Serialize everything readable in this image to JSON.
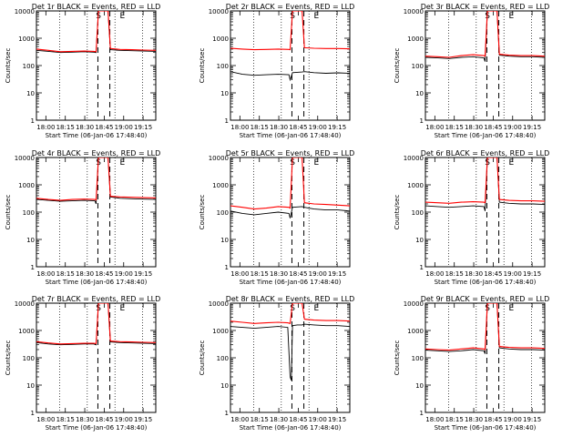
{
  "common": {
    "ylabel": "Counts/sec",
    "xlabel": "Start Time (06-Jan-06 17:48:40)",
    "yticks": [
      "1",
      "10",
      "100",
      "1000",
      "10000"
    ],
    "marker_s": "S",
    "marker_e": "E",
    "colors": {
      "events": "#000000",
      "lld": "#ff0000"
    }
  },
  "chart_data": [
    {
      "type": "line",
      "title": "Det 1r BLACK = Events, RED = LLD",
      "yscale": "log",
      "ylim": [
        1,
        10000
      ],
      "xticks": [
        "18:00",
        "18:15",
        "18:30",
        "18:45",
        "19:00",
        "19:15"
      ],
      "dotted_x": [
        0.195,
        0.426,
        0.658,
        0.889
      ],
      "dashed_x": [
        0.515,
        0.615
      ],
      "s_x": 0.52,
      "e_x": 0.72,
      "series": [
        {
          "x": [
            0,
            0.1,
            0.2,
            0.3,
            0.4,
            0.48,
            0.5,
            0.52,
            0.56,
            0.6,
            0.62,
            0.7,
            0.8,
            0.9,
            1
          ],
          "y": [
            360,
            330,
            300,
            310,
            320,
            310,
            300,
            10000,
            10000,
            10000,
            380,
            360,
            350,
            340,
            330
          ]
        },
        {
          "x": [
            0,
            0.1,
            0.2,
            0.3,
            0.4,
            0.48,
            0.5,
            0.52,
            0.56,
            0.6,
            0.62,
            0.7,
            0.8,
            0.9,
            1
          ],
          "y": [
            400,
            360,
            320,
            330,
            340,
            330,
            320,
            10000,
            10000,
            10000,
            420,
            390,
            380,
            370,
            360
          ]
        }
      ]
    },
    {
      "type": "line",
      "title": "Det 2r BLACK = Events, RED = LLD",
      "yscale": "log",
      "ylim": [
        1,
        10000
      ],
      "xticks": [
        "18:00",
        "18:15",
        "18:30",
        "18:45",
        "19:00",
        "19:15"
      ],
      "dotted_x": [
        0.195,
        0.426,
        0.658,
        0.889
      ],
      "dashed_x": [
        0.515,
        0.615
      ],
      "s_x": 0.52,
      "e_x": 0.72,
      "series": [
        {
          "x": [
            0,
            0.1,
            0.2,
            0.3,
            0.4,
            0.49,
            0.5,
            0.52,
            0.6,
            0.62,
            0.7,
            0.8,
            0.9,
            1
          ],
          "y": [
            60,
            48,
            44,
            46,
            48,
            46,
            30,
            55,
            58,
            60,
            55,
            52,
            54,
            52
          ]
        },
        {
          "x": [
            0,
            0.1,
            0.2,
            0.3,
            0.4,
            0.49,
            0.5,
            0.52,
            0.56,
            0.6,
            0.62,
            0.7,
            0.8,
            0.9,
            1
          ],
          "y": [
            430,
            400,
            380,
            390,
            400,
            390,
            380,
            10000,
            10000,
            10000,
            450,
            430,
            420,
            420,
            410
          ]
        }
      ]
    },
    {
      "type": "line",
      "title": "Det 3r BLACK = Events, RED = LLD",
      "yscale": "log",
      "ylim": [
        1,
        10000
      ],
      "xticks": [
        "18:00",
        "18:15",
        "18:30",
        "18:45",
        "19:00",
        "19:15"
      ],
      "dotted_x": [
        0.195,
        0.426,
        0.658,
        0.889
      ],
      "dashed_x": [
        0.515,
        0.615
      ],
      "s_x": 0.52,
      "e_x": 0.72,
      "series": [
        {
          "x": [
            0,
            0.1,
            0.2,
            0.3,
            0.4,
            0.49,
            0.5,
            0.52,
            0.56,
            0.6,
            0.62,
            0.7,
            0.8,
            0.9,
            1
          ],
          "y": [
            200,
            190,
            180,
            200,
            210,
            190,
            140,
            10000,
            10000,
            10000,
            240,
            220,
            210,
            210,
            200
          ]
        },
        {
          "x": [
            0,
            0.1,
            0.2,
            0.3,
            0.4,
            0.49,
            0.5,
            0.52,
            0.56,
            0.6,
            0.62,
            0.7,
            0.8,
            0.9,
            1
          ],
          "y": [
            220,
            210,
            200,
            230,
            250,
            230,
            220,
            10000,
            10000,
            10000,
            260,
            240,
            230,
            230,
            220
          ]
        }
      ]
    },
    {
      "type": "line",
      "title": "Det 4r BLACK = Events, RED = LLD",
      "yscale": "log",
      "ylim": [
        1,
        10000
      ],
      "xticks": [
        "18:00",
        "18:15",
        "18:30",
        "18:45",
        "19:00",
        "19:15"
      ],
      "dotted_x": [
        0.195,
        0.426,
        0.658,
        0.889
      ],
      "dashed_x": [
        0.515,
        0.615
      ],
      "s_x": 0.52,
      "e_x": 0.72,
      "series": [
        {
          "x": [
            0,
            0.1,
            0.2,
            0.3,
            0.4,
            0.49,
            0.5,
            0.52,
            0.56,
            0.6,
            0.62,
            0.7,
            0.8,
            0.9,
            1
          ],
          "y": [
            290,
            270,
            250,
            260,
            270,
            260,
            200,
            10000,
            10000,
            10000,
            360,
            320,
            310,
            300,
            290
          ]
        },
        {
          "x": [
            0,
            0.1,
            0.2,
            0.3,
            0.4,
            0.49,
            0.5,
            0.52,
            0.56,
            0.6,
            0.62,
            0.7,
            0.8,
            0.9,
            1
          ],
          "y": [
            320,
            290,
            270,
            290,
            300,
            290,
            280,
            10000,
            10000,
            10000,
            380,
            360,
            350,
            340,
            330
          ]
        }
      ]
    },
    {
      "type": "line",
      "title": "Det 5r BLACK = Events, RED = LLD",
      "yscale": "log",
      "ylim": [
        1,
        10000
      ],
      "xticks": [
        "18:00",
        "18:15",
        "18:30",
        "18:45",
        "19:00",
        "19:15"
      ],
      "dotted_x": [
        0.195,
        0.426,
        0.658,
        0.889
      ],
      "dashed_x": [
        0.515,
        0.615
      ],
      "s_x": 0.52,
      "e_x": 0.72,
      "series": [
        {
          "x": [
            0,
            0.1,
            0.2,
            0.3,
            0.4,
            0.49,
            0.5,
            0.52,
            0.6,
            0.62,
            0.7,
            0.8,
            0.9,
            1
          ],
          "y": [
            110,
            90,
            80,
            90,
            100,
            90,
            60,
            150,
            160,
            150,
            130,
            120,
            120,
            110
          ]
        },
        {
          "x": [
            0,
            0.1,
            0.2,
            0.3,
            0.4,
            0.49,
            0.5,
            0.52,
            0.56,
            0.6,
            0.62,
            0.7,
            0.8,
            0.9,
            1
          ],
          "y": [
            170,
            150,
            130,
            140,
            160,
            150,
            140,
            10000,
            10000,
            10000,
            220,
            200,
            190,
            180,
            170
          ]
        }
      ]
    },
    {
      "type": "line",
      "title": "Det 6r BLACK = Events, RED = LLD",
      "yscale": "log",
      "ylim": [
        1,
        10000
      ],
      "xticks": [
        "18:00",
        "18:15",
        "18:30",
        "18:45",
        "19:00",
        "19:15"
      ],
      "dotted_x": [
        0.195,
        0.426,
        0.658,
        0.889
      ],
      "dashed_x": [
        0.515,
        0.615
      ],
      "s_x": 0.52,
      "e_x": 0.72,
      "series": [
        {
          "x": [
            0,
            0.1,
            0.2,
            0.3,
            0.4,
            0.49,
            0.5,
            0.52,
            0.56,
            0.6,
            0.62,
            0.7,
            0.8,
            0.9,
            1
          ],
          "y": [
            170,
            160,
            150,
            160,
            170,
            160,
            110,
            10000,
            10000,
            10000,
            230,
            210,
            200,
            200,
            190
          ]
        },
        {
          "x": [
            0,
            0.1,
            0.2,
            0.3,
            0.4,
            0.49,
            0.5,
            0.52,
            0.56,
            0.6,
            0.62,
            0.7,
            0.8,
            0.9,
            1
          ],
          "y": [
            230,
            220,
            210,
            230,
            240,
            230,
            220,
            10000,
            10000,
            10000,
            290,
            270,
            260,
            260,
            250
          ]
        }
      ]
    },
    {
      "type": "line",
      "title": "Det 7r BLACK = Events, RED = LLD",
      "yscale": "log",
      "ylim": [
        1,
        10000
      ],
      "xticks": [
        "18:00",
        "18:15",
        "18:30",
        "18:45",
        "19:00",
        "19:15"
      ],
      "dotted_x": [
        0.195,
        0.426,
        0.658,
        0.889
      ],
      "dashed_x": [
        0.515,
        0.615
      ],
      "s_x": 0.52,
      "e_x": 0.72,
      "series": [
        {
          "x": [
            0,
            0.1,
            0.2,
            0.3,
            0.4,
            0.48,
            0.5,
            0.52,
            0.56,
            0.6,
            0.62,
            0.7,
            0.8,
            0.9,
            1
          ],
          "y": [
            360,
            320,
            300,
            310,
            320,
            320,
            300,
            10000,
            10000,
            10000,
            380,
            360,
            350,
            340,
            330
          ]
        },
        {
          "x": [
            0,
            0.1,
            0.2,
            0.3,
            0.4,
            0.48,
            0.5,
            0.52,
            0.56,
            0.6,
            0.62,
            0.7,
            0.8,
            0.9,
            1
          ],
          "y": [
            390,
            350,
            320,
            330,
            340,
            340,
            330,
            10000,
            10000,
            10000,
            410,
            390,
            380,
            370,
            360
          ]
        }
      ]
    },
    {
      "type": "line",
      "title": "Det 8r BLACK = Events, RED = LLD",
      "yscale": "log",
      "ylim": [
        1,
        10000
      ],
      "xticks": [
        "18:00",
        "18:15",
        "18:30",
        "18:45",
        "19:00",
        "19:15"
      ],
      "dotted_x": [
        0.195,
        0.426,
        0.658,
        0.889
      ],
      "dashed_x": [
        0.515,
        0.615
      ],
      "s_x": 0.52,
      "e_x": 0.72,
      "series": [
        {
          "x": [
            0,
            0.1,
            0.2,
            0.3,
            0.4,
            0.48,
            0.5,
            0.51,
            0.52,
            0.56,
            0.6,
            0.62,
            0.7,
            0.8,
            0.9,
            1
          ],
          "y": [
            1400,
            1300,
            1200,
            1300,
            1400,
            1300,
            20,
            15,
            1500,
            1600,
            1600,
            1700,
            1600,
            1500,
            1500,
            1400
          ]
        },
        {
          "x": [
            0,
            0.1,
            0.2,
            0.3,
            0.4,
            0.48,
            0.5,
            0.52,
            0.56,
            0.6,
            0.62,
            0.7,
            0.8,
            0.9,
            1
          ],
          "y": [
            2200,
            2000,
            1800,
            1900,
            2000,
            1900,
            1800,
            10000,
            10000,
            10000,
            2600,
            2400,
            2300,
            2300,
            2200
          ]
        }
      ]
    },
    {
      "type": "line",
      "title": "Det 9r BLACK = Events, RED = LLD",
      "yscale": "log",
      "ylim": [
        1,
        10000
      ],
      "xticks": [
        "18:00",
        "18:15",
        "18:30",
        "18:45",
        "19:00",
        "19:15"
      ],
      "dotted_x": [
        0.195,
        0.426,
        0.658,
        0.889
      ],
      "dashed_x": [
        0.515,
        0.615
      ],
      "s_x": 0.52,
      "e_x": 0.72,
      "series": [
        {
          "x": [
            0,
            0.1,
            0.2,
            0.3,
            0.4,
            0.49,
            0.5,
            0.52,
            0.56,
            0.6,
            0.62,
            0.7,
            0.8,
            0.9,
            1
          ],
          "y": [
            190,
            180,
            170,
            180,
            200,
            180,
            140,
            10000,
            10000,
            10000,
            230,
            210,
            200,
            200,
            190
          ]
        },
        {
          "x": [
            0,
            0.1,
            0.2,
            0.3,
            0.4,
            0.49,
            0.5,
            0.52,
            0.56,
            0.6,
            0.62,
            0.7,
            0.8,
            0.9,
            1
          ],
          "y": [
            210,
            200,
            190,
            210,
            230,
            210,
            200,
            10000,
            10000,
            10000,
            260,
            240,
            230,
            230,
            220
          ]
        }
      ]
    }
  ]
}
